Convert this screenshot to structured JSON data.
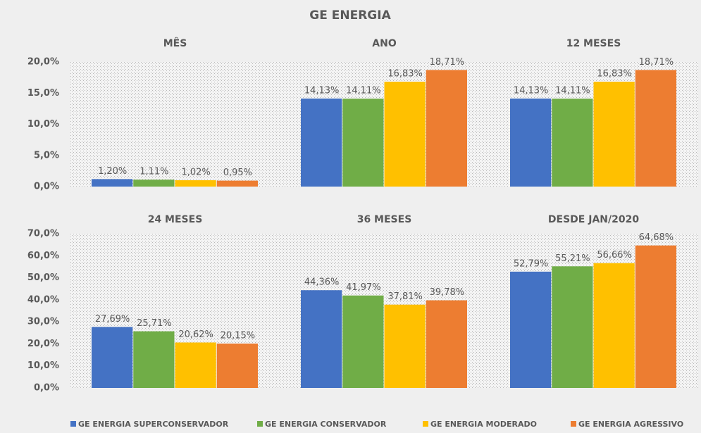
{
  "title": "GE ENERGIA",
  "chart_data": [
    {
      "type": "bar",
      "categories": [
        "MÊS",
        "ANO",
        "12 MESES"
      ],
      "ylim": [
        0,
        20
      ],
      "yticks": [
        {
          "value": 0,
          "label": "0,0%"
        },
        {
          "value": 5,
          "label": "5,0%"
        },
        {
          "value": 10,
          "label": "10,0%"
        },
        {
          "value": 15,
          "label": "15,0%"
        },
        {
          "value": 20,
          "label": "20,0%"
        }
      ],
      "series": [
        {
          "name": "GE ENERGIA SUPERCONSERVADOR",
          "color": "#4472c4",
          "values": [
            1.2,
            14.13,
            14.13
          ],
          "value_labels": [
            "1,20%",
            "14,13%",
            "14,13%"
          ]
        },
        {
          "name": "GE ENERGIA CONSERVADOR",
          "color": "#70ad47",
          "values": [
            1.11,
            14.11,
            14.11
          ],
          "value_labels": [
            "1,11%",
            "14,11%",
            "14,11%"
          ]
        },
        {
          "name": "GE ENERGIA MODERADO",
          "color": "#ffc000",
          "values": [
            1.02,
            16.83,
            16.83
          ],
          "value_labels": [
            "1,02%",
            "16,83%",
            "16,83%"
          ]
        },
        {
          "name": "GE ENERGIA AGRESSIVO",
          "color": "#ed7d31",
          "values": [
            0.95,
            18.71,
            18.71
          ],
          "value_labels": [
            "0,95%",
            "18,71%",
            "18,71%"
          ]
        }
      ]
    },
    {
      "type": "bar",
      "categories": [
        "24 MESES",
        "36 MESES",
        "DESDE JAN/2020"
      ],
      "ylim": [
        0,
        70
      ],
      "yticks": [
        {
          "value": 0,
          "label": "0,0%"
        },
        {
          "value": 10,
          "label": "10,0%"
        },
        {
          "value": 20,
          "label": "20,0%"
        },
        {
          "value": 30,
          "label": "30,0%"
        },
        {
          "value": 40,
          "label": "40,0%"
        },
        {
          "value": 50,
          "label": "50,0%"
        },
        {
          "value": 60,
          "label": "60,0%"
        },
        {
          "value": 70,
          "label": "70,0%"
        }
      ],
      "series": [
        {
          "color": "#4472c4",
          "values": [
            27.69,
            44.36,
            52.79
          ],
          "value_labels": [
            "27,69%",
            "44,36%",
            "52,79%"
          ]
        },
        {
          "color": "#70ad47",
          "values": [
            25.71,
            41.97,
            55.21
          ],
          "value_labels": [
            "25,71%",
            "41,97%",
            "55,21%"
          ]
        },
        {
          "color": "#ffc000",
          "values": [
            20.62,
            37.81,
            56.66
          ],
          "value_labels": [
            "20,62%",
            "37,81%",
            "56,66%"
          ]
        },
        {
          "color": "#ed7d31",
          "values": [
            20.15,
            39.78,
            64.68
          ],
          "value_labels": [
            "20,15%",
            "39,78%",
            "64,68%"
          ]
        }
      ]
    }
  ]
}
